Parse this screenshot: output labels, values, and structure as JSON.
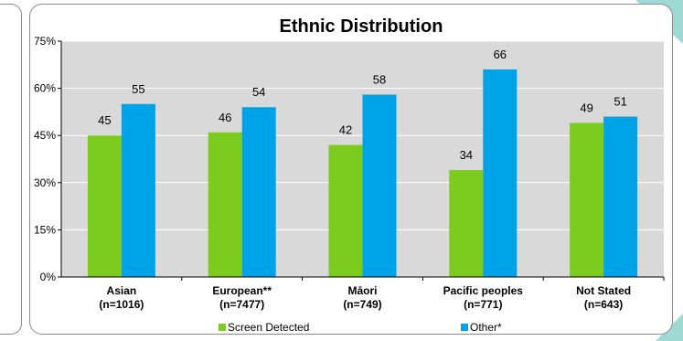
{
  "chart_data": {
    "type": "bar",
    "title": "Ethnic Distribution",
    "xlabel": "",
    "ylabel": "",
    "ylim": [
      0,
      75
    ],
    "yticks": [
      "0%",
      "15%",
      "30%",
      "45%",
      "60%",
      "75%"
    ],
    "ytick_values": [
      0,
      15,
      30,
      45,
      60,
      75
    ],
    "categories": [
      {
        "name": "Asian",
        "n": "(n=1016)"
      },
      {
        "name": "European**",
        "n": "(n=7477)"
      },
      {
        "name": "Māori",
        "n": "(n=749)"
      },
      {
        "name": "Pacific peoples",
        "n": "(n=771)"
      },
      {
        "name": "Not Stated",
        "n": "(n=643)"
      }
    ],
    "series": [
      {
        "name": "Screen Detected",
        "color": "#7ccc1f",
        "values": [
          45,
          46,
          42,
          34,
          49
        ]
      },
      {
        "name": "Other*",
        "color": "#00a3e8",
        "values": [
          55,
          54,
          58,
          66,
          51
        ]
      }
    ],
    "grid": true,
    "legend": "bottom"
  }
}
